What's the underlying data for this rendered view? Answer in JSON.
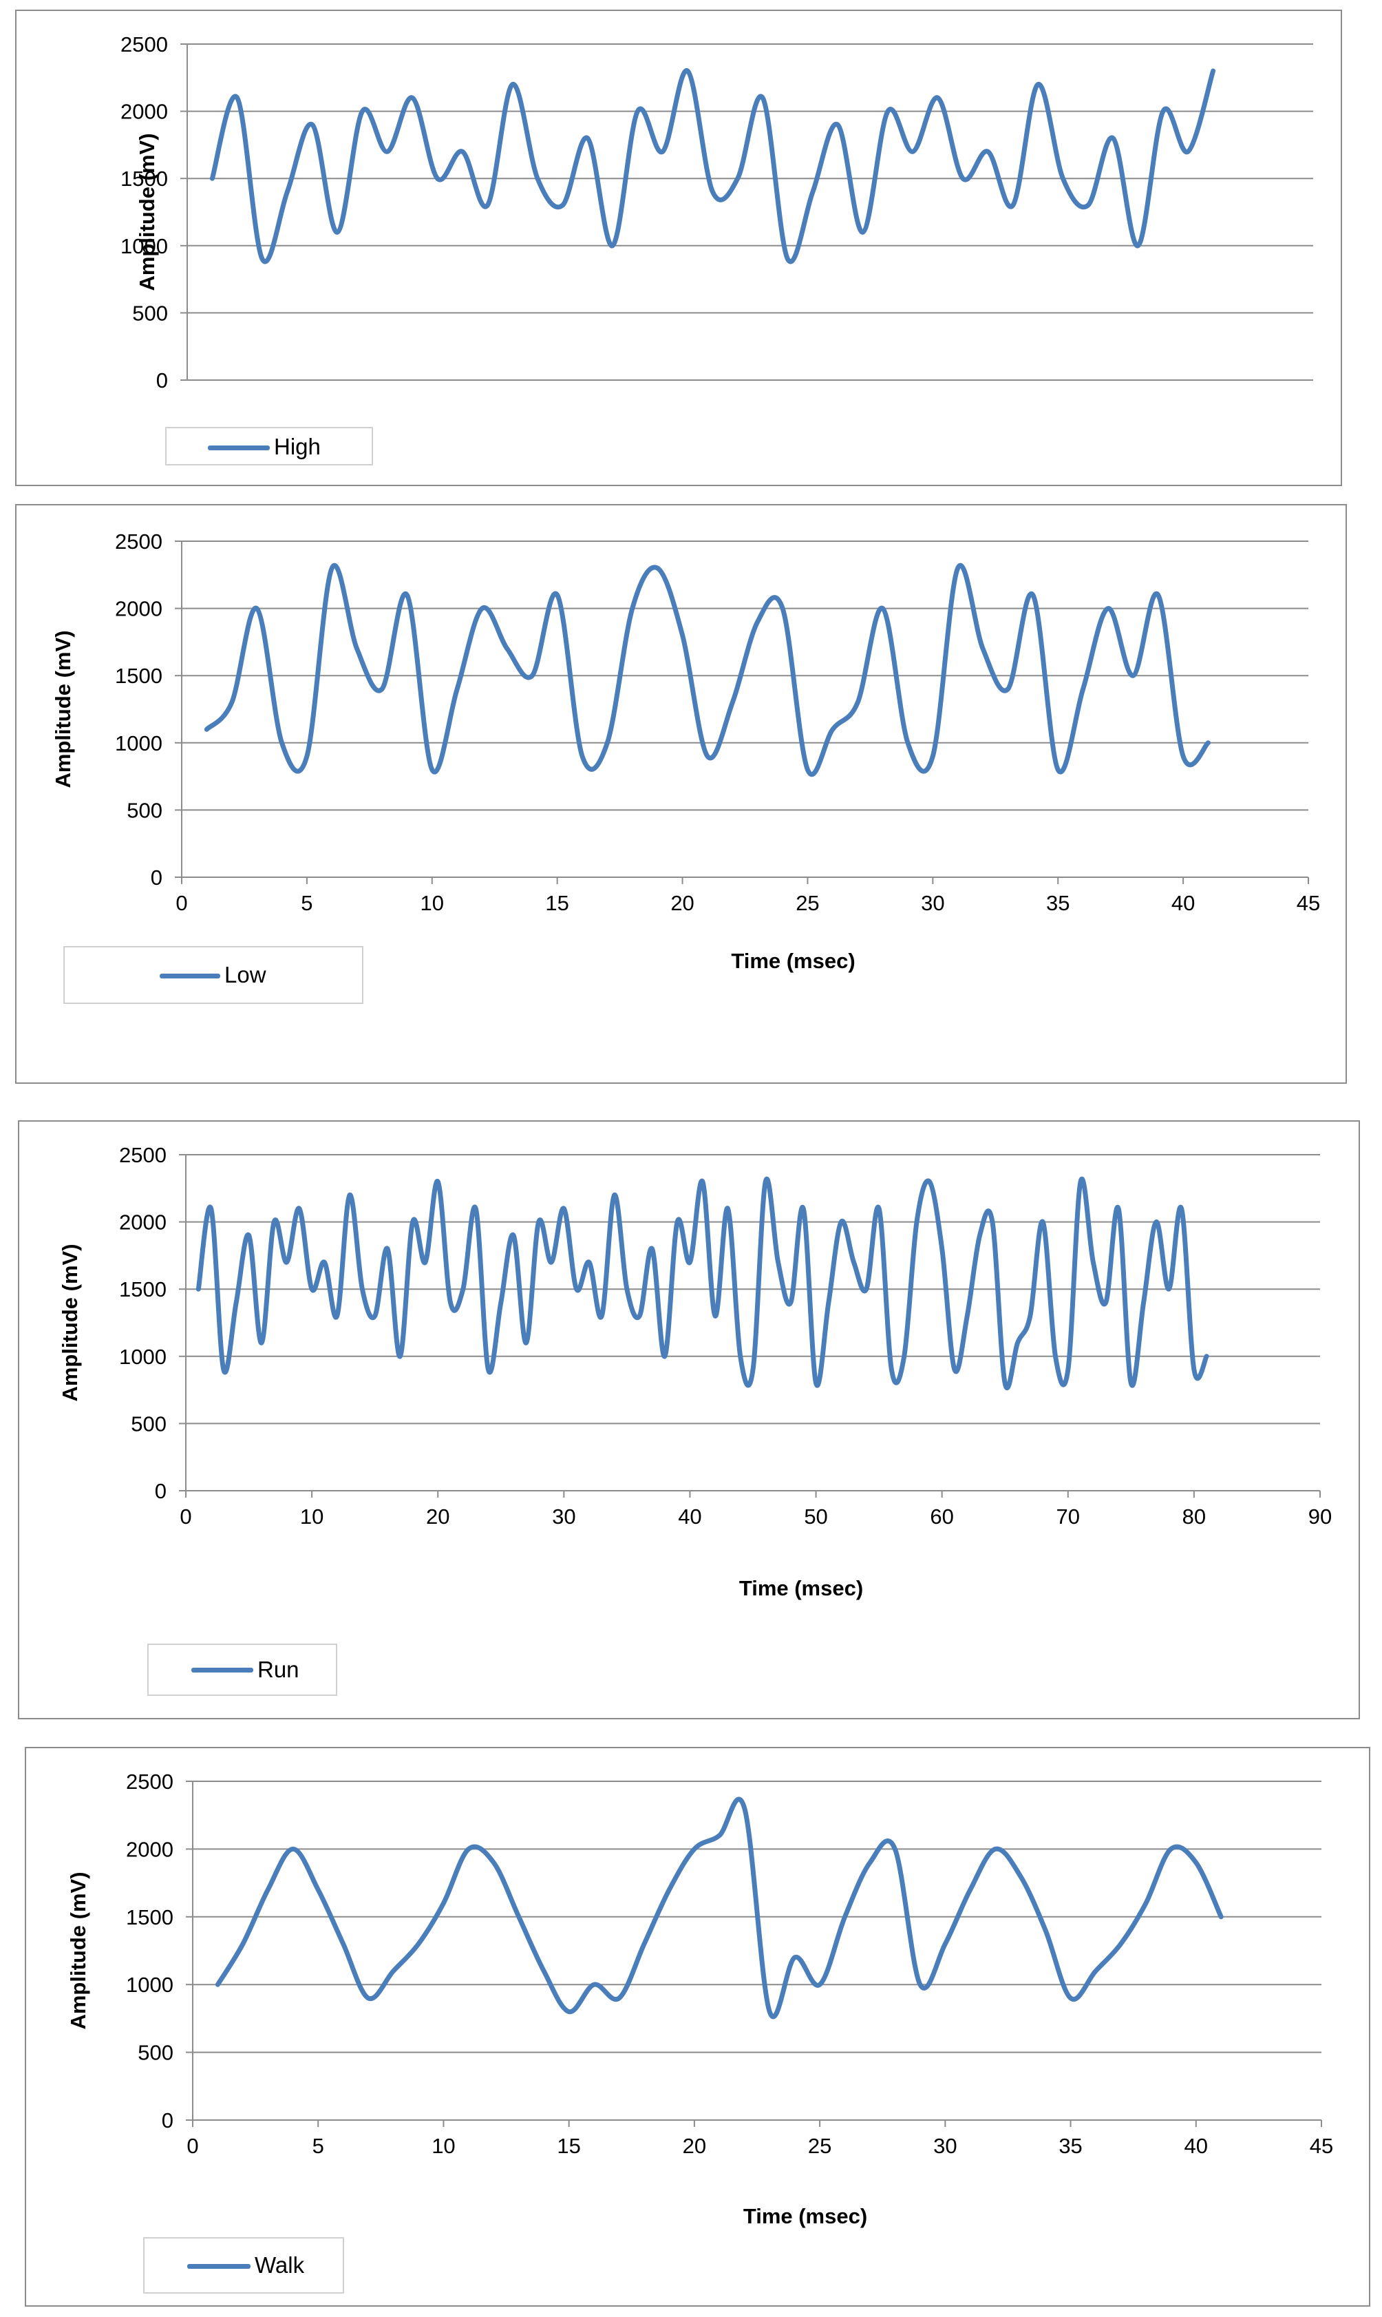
{
  "chart_data": [
    {
      "type": "line",
      "ylabel": "Amplitude (mV)",
      "xlabel": "",
      "ylim": [
        0,
        2500
      ],
      "yticks": [
        0,
        500,
        1000,
        1500,
        2000,
        2500
      ],
      "xticks": [],
      "grid": true,
      "legend_position": "bottom-left",
      "series": [
        {
          "name": "High",
          "color": "#4a7ebb",
          "x": [
            1,
            2,
            3,
            4,
            5,
            6,
            7,
            8,
            9,
            10,
            11,
            12,
            13,
            14,
            15,
            16,
            17,
            18,
            19,
            20,
            21,
            22,
            23,
            24,
            25,
            26,
            27,
            28,
            29,
            30,
            31,
            32,
            33,
            34,
            35,
            36,
            37,
            38,
            39,
            40,
            41
          ],
          "values": [
            1500,
            2100,
            900,
            1400,
            1900,
            1100,
            2000,
            1700,
            2100,
            1500,
            1700,
            1300,
            2200,
            1500,
            1300,
            1800,
            1000,
            2000,
            1700,
            2300,
            1400,
            1500,
            2100,
            900,
            1400,
            1900,
            1100,
            2000,
            1700,
            2100,
            1500,
            1700,
            1300,
            2200,
            1500,
            1300,
            1800,
            1000,
            2000,
            1700,
            2300
          ]
        }
      ]
    },
    {
      "type": "line",
      "ylabel": "Amplitude (mV)",
      "xlabel": "Time (msec)",
      "ylim": [
        0,
        2500
      ],
      "xlim": [
        0,
        45
      ],
      "yticks": [
        0,
        500,
        1000,
        1500,
        2000,
        2500
      ],
      "xticks": [
        0,
        5,
        10,
        15,
        20,
        25,
        30,
        35,
        40,
        45
      ],
      "grid": true,
      "legend_position": "bottom-left",
      "series": [
        {
          "name": "Low",
          "color": "#4a7ebb",
          "x": [
            1,
            2,
            3,
            4,
            5,
            6,
            7,
            8,
            9,
            10,
            11,
            12,
            13,
            14,
            15,
            16,
            17,
            18,
            19,
            20,
            21,
            22,
            23,
            24,
            25,
            26,
            27,
            28,
            29,
            30,
            31,
            32,
            33,
            34,
            35,
            36,
            37,
            38,
            39,
            40,
            41
          ],
          "values": [
            1100,
            1300,
            2000,
            1000,
            900,
            2300,
            1700,
            1400,
            2100,
            800,
            1400,
            2000,
            1700,
            1500,
            2100,
            900,
            1000,
            2000,
            2300,
            1800,
            900,
            1300,
            1900,
            2000,
            800,
            1100,
            1300,
            2000,
            1000,
            900,
            2300,
            1700,
            1400,
            2100,
            800,
            1400,
            2000,
            1500,
            2100,
            900,
            1000
          ]
        }
      ]
    },
    {
      "type": "line",
      "ylabel": "Amplitude (mV)",
      "xlabel": "Time (msec)",
      "ylim": [
        0,
        2500
      ],
      "xlim": [
        0,
        90
      ],
      "yticks": [
        0,
        500,
        1000,
        1500,
        2000,
        2500
      ],
      "xticks": [
        0,
        10,
        20,
        30,
        40,
        50,
        60,
        70,
        80,
        90
      ],
      "grid": true,
      "legend_position": "bottom-left",
      "series": [
        {
          "name": "Run",
          "color": "#4a7ebb",
          "x": [
            1,
            2,
            3,
            4,
            5,
            6,
            7,
            8,
            9,
            10,
            11,
            12,
            13,
            14,
            15,
            16,
            17,
            18,
            19,
            20,
            21,
            22,
            23,
            24,
            25,
            26,
            27,
            28,
            29,
            30,
            31,
            32,
            33,
            34,
            35,
            36,
            37,
            38,
            39,
            40,
            41,
            42,
            43,
            44,
            45,
            46,
            47,
            48,
            49,
            50,
            51,
            52,
            53,
            54,
            55,
            56,
            57,
            58,
            59,
            60,
            61,
            62,
            63,
            64,
            65,
            66,
            67,
            68,
            69,
            70,
            71,
            72,
            73,
            74,
            75,
            76,
            77,
            78,
            79,
            80,
            81
          ],
          "values": [
            1500,
            2100,
            900,
            1400,
            1900,
            1100,
            2000,
            1700,
            2100,
            1500,
            1700,
            1300,
            2200,
            1500,
            1300,
            1800,
            1000,
            2000,
            1700,
            2300,
            1400,
            1500,
            2100,
            900,
            1400,
            1900,
            1100,
            2000,
            1700,
            2100,
            1500,
            1700,
            1300,
            2200,
            1500,
            1300,
            1800,
            1000,
            2000,
            1700,
            2300,
            1300,
            2100,
            1000,
            900,
            2300,
            1700,
            1400,
            2100,
            800,
            1400,
            2000,
            1700,
            1500,
            2100,
            900,
            1000,
            2000,
            2300,
            1800,
            900,
            1300,
            1900,
            2000,
            800,
            1100,
            1300,
            2000,
            1000,
            900,
            2300,
            1700,
            1400,
            2100,
            800,
            1400,
            2000,
            1500,
            2100,
            900,
            1000
          ]
        }
      ]
    },
    {
      "type": "line",
      "ylabel": "Amplitude (mV)",
      "xlabel": "Time (msec)",
      "ylim": [
        0,
        2500
      ],
      "xlim": [
        0,
        45
      ],
      "yticks": [
        0,
        500,
        1000,
        1500,
        2000,
        2500
      ],
      "xticks": [
        0,
        5,
        10,
        15,
        20,
        25,
        30,
        35,
        40,
        45
      ],
      "grid": true,
      "legend_position": "bottom-left",
      "series": [
        {
          "name": "Walk",
          "color": "#4a7ebb",
          "x": [
            1,
            2,
            3,
            4,
            5,
            6,
            7,
            8,
            9,
            10,
            11,
            12,
            13,
            14,
            15,
            16,
            17,
            18,
            19,
            20,
            21,
            22,
            23,
            24,
            25,
            26,
            27,
            28,
            29,
            30,
            31,
            32,
            33,
            34,
            35,
            36,
            37,
            38,
            39,
            40,
            41
          ],
          "values": [
            1000,
            1300,
            1700,
            2000,
            1700,
            1300,
            900,
            1100,
            1300,
            1600,
            2000,
            1900,
            1500,
            1100,
            800,
            1000,
            900,
            1300,
            1700,
            2000,
            2100,
            2300,
            800,
            1200,
            1000,
            1500,
            1900,
            2000,
            1000,
            1300,
            1700,
            2000,
            1800,
            1400,
            900,
            1100,
            1300,
            1600,
            2000,
            1900,
            1500
          ]
        }
      ]
    }
  ]
}
